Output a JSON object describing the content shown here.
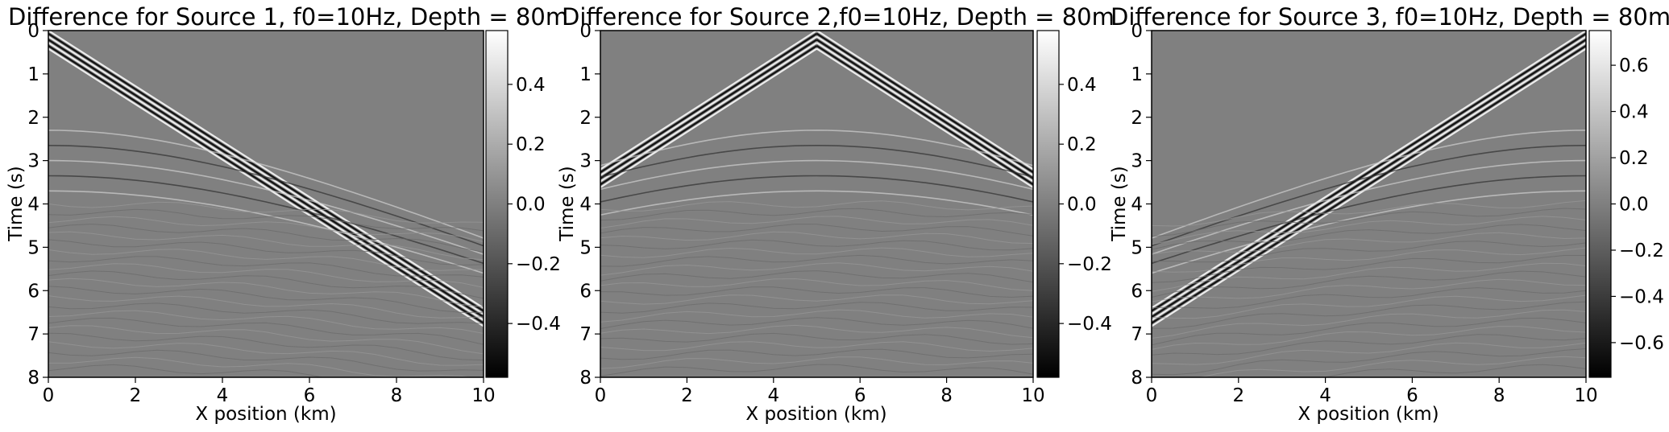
{
  "chart_data": [
    {
      "type": "heatmap",
      "title": "Difference for Source 1, f0=10Hz, Depth = 80m",
      "xlabel": "X position (km)",
      "ylabel": "Time (s)",
      "xlim": [
        0,
        10
      ],
      "ylim": [
        8,
        0
      ],
      "x_ticks": [
        "0",
        "2",
        "4",
        "6",
        "8",
        "10"
      ],
      "y_ticks": [
        "0",
        "1",
        "2",
        "3",
        "4",
        "5",
        "6",
        "7",
        "8"
      ],
      "colorbar": {
        "range": [
          -0.58,
          0.58
        ],
        "ticks": [
          0.4,
          0.2,
          0.0,
          -0.2,
          -0.4
        ],
        "tick_labels": [
          "0.4",
          "0.2",
          "0.0",
          "−0.2",
          "−0.4"
        ]
      },
      "colormap": "gray",
      "source_x_km": 0
    },
    {
      "type": "heatmap",
      "title": "Difference for Source 2,f0=10Hz, Depth = 80m",
      "xlabel": "X position (km)",
      "ylabel": "Time (s)",
      "xlim": [
        0,
        10
      ],
      "ylim": [
        8,
        0
      ],
      "x_ticks": [
        "0",
        "2",
        "4",
        "6",
        "8",
        "10"
      ],
      "y_ticks": [
        "0",
        "1",
        "2",
        "3",
        "4",
        "5",
        "6",
        "7",
        "8"
      ],
      "colorbar": {
        "range": [
          -0.58,
          0.58
        ],
        "ticks": [
          0.4,
          0.2,
          0.0,
          -0.2,
          -0.4
        ],
        "tick_labels": [
          "0.4",
          "0.2",
          "0.0",
          "−0.2",
          "−0.4"
        ]
      },
      "colormap": "gray",
      "source_x_km": 5
    },
    {
      "type": "heatmap",
      "title": "Difference for Source 3, f0=10Hz, Depth = 80m",
      "xlabel": "X position (km)",
      "ylabel": "Time (s)",
      "xlim": [
        0,
        10
      ],
      "ylim": [
        8,
        0
      ],
      "x_ticks": [
        "0",
        "2",
        "4",
        "6",
        "8",
        "10"
      ],
      "y_ticks": [
        "0",
        "1",
        "2",
        "3",
        "4",
        "5",
        "6",
        "7",
        "8"
      ],
      "colorbar": {
        "range": [
          -0.75,
          0.75
        ],
        "ticks": [
          0.6,
          0.4,
          0.2,
          0.0,
          -0.2,
          -0.4,
          -0.6
        ],
        "tick_labels": [
          "0.6",
          "0.4",
          "0.2",
          "0.0",
          "−0.2",
          "−0.4",
          "−0.6"
        ]
      },
      "colormap": "gray",
      "source_x_km": 10
    }
  ]
}
